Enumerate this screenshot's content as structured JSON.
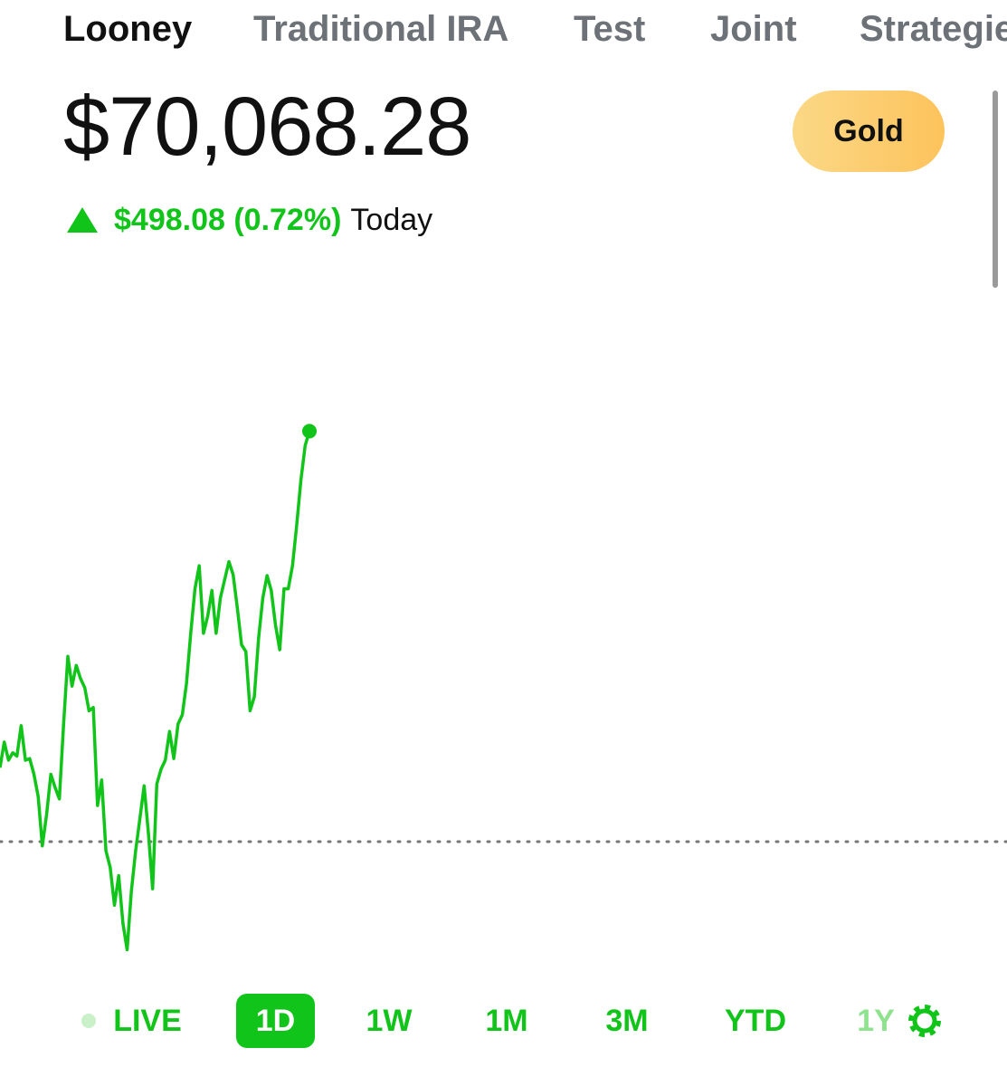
{
  "tabs": [
    {
      "label": "Looney",
      "active": true
    },
    {
      "label": "Traditional IRA",
      "active": false
    },
    {
      "label": "Test",
      "active": false
    },
    {
      "label": "Joint",
      "active": false
    },
    {
      "label": "Strategies",
      "active": false
    }
  ],
  "balance": "$70,068.28",
  "upgrade_button": "Gold",
  "change": {
    "amount": "$498.08 (0.72%)",
    "period": "Today"
  },
  "chart_data": {
    "type": "line",
    "color": "#11c41a",
    "values": [
      69660,
      69691,
      69669,
      69678,
      69674,
      69711,
      69669,
      69671,
      69652,
      69625,
      69565,
      69603,
      69652,
      69636,
      69622,
      69713,
      69795,
      69759,
      69784,
      69768,
      69757,
      69729,
      69733,
      69614,
      69645,
      69559,
      69539,
      69493,
      69529,
      69471,
      69439,
      69510,
      69559,
      69598,
      69638,
      69581,
      69513,
      69640,
      69658,
      69669,
      69704,
      69671,
      69713,
      69724,
      69762,
      69823,
      69877,
      69905,
      69823,
      69844,
      69875,
      69823,
      69866,
      69888,
      69910,
      69894,
      69853,
      69809,
      69801,
      69729,
      69746,
      69817,
      69866,
      69893,
      69875,
      69833,
      69803,
      69877,
      69877,
      69905,
      69954,
      70009,
      70051,
      70068.28
    ],
    "ylim": [
      69400,
      70150
    ],
    "previous_close": 69570.2
  },
  "ranges": [
    {
      "label": "LIVE",
      "selected": false
    },
    {
      "label": "1D",
      "selected": true
    },
    {
      "label": "1W",
      "selected": false
    },
    {
      "label": "1M",
      "selected": false
    },
    {
      "label": "3M",
      "selected": false
    },
    {
      "label": "YTD",
      "selected": false
    },
    {
      "label": "1Y",
      "selected": false
    }
  ]
}
